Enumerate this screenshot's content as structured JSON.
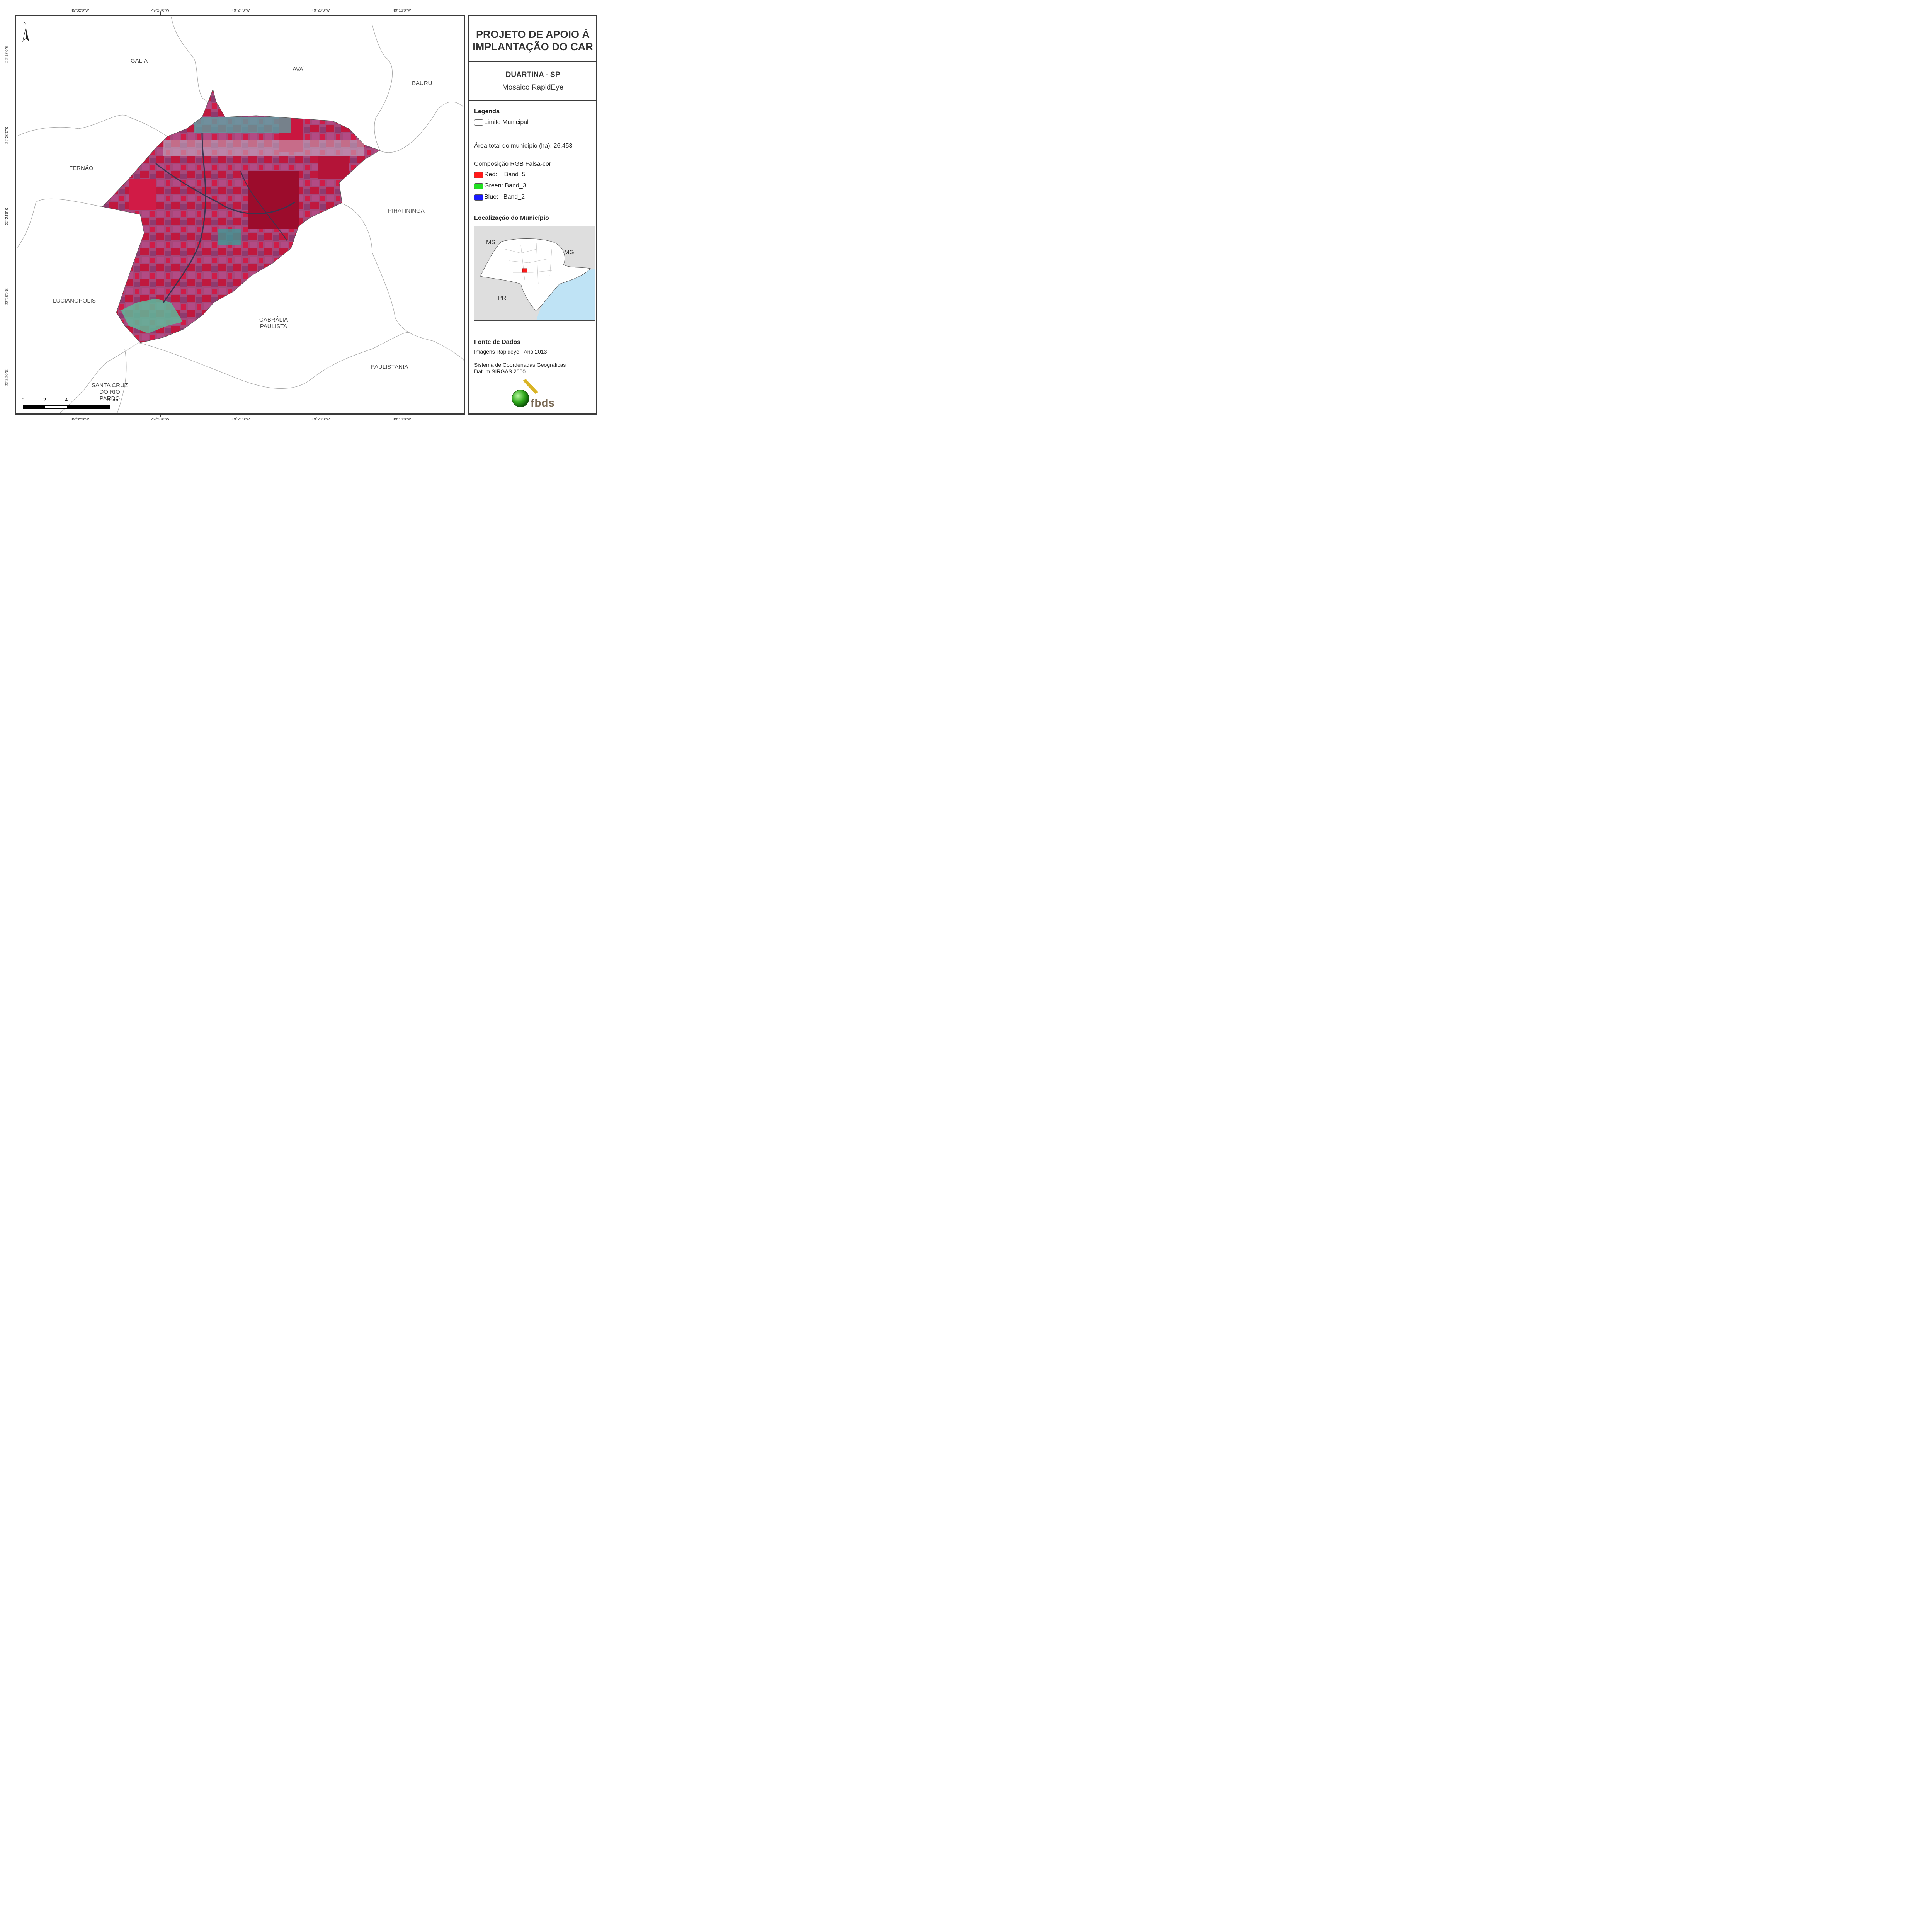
{
  "map": {
    "coords_top": [
      "49°32'0\"W",
      "49°28'0\"W",
      "49°24'0\"W",
      "49°20'0\"W",
      "49°16'0\"W"
    ],
    "coords_bottom": [
      "49°32'0\"W",
      "49°28'0\"W",
      "49°24'0\"W",
      "49°20'0\"W",
      "49°16'0\"W"
    ],
    "coords_left": [
      "22°16'0\"S",
      "22°20'0\"S",
      "22°24'0\"S",
      "22°28'0\"S",
      "22°32'0\"S"
    ],
    "north_label": "N",
    "municipalities": {
      "galia": "GÁLIA",
      "avai": "AVAÍ",
      "bauru": "BAURU",
      "fernao": "FERNÃO",
      "piratininga": "PIRATININGA",
      "lucianopolis": "LUCIANÓPOLIS",
      "cabralia": "CABRÁLIA PAULISTA",
      "paulistania": "PAULISTÂNIA",
      "santa_cruz": "SANTA CRUZ DO RIO PARDO"
    },
    "scale": {
      "l0": "0",
      "l2": "2",
      "l4": "4",
      "l8": "8 km"
    }
  },
  "panel": {
    "title": "PROJETO DE APOIO À IMPLANTAÇÃO DO CAR",
    "municipality": "DUARTINA - SP",
    "mosaic": "Mosaico RapidEye",
    "legend_heading": "Legenda",
    "limit_label": "Limite Municipal",
    "area_text": "Área total do município (ha): 26.453",
    "rgb_heading": "Composição RGB Falsa-cor",
    "bands": [
      {
        "label": "Red:    Band_5",
        "color": "#ff1a1a"
      },
      {
        "label": "Green: Band_3",
        "color": "#22e022"
      },
      {
        "label": "Blue:   Band_2",
        "color": "#1a1aff"
      }
    ],
    "location_heading": "Localização do Município",
    "inset": {
      "ms": "MS",
      "mg": "MG",
      "pr": "PR"
    },
    "source_heading": "Fonte de Dados",
    "source_line1": "Imagens Rapideye - Ano 2013",
    "source_line2": "Sistema de Coordenadas Geográficas",
    "source_line3": "Datum SIRGAS 2000",
    "logo_text": "fbds"
  },
  "colors": {
    "mosaic_red": "#b8123a",
    "mosaic_magenta": "#a6487a",
    "mosaic_cyan": "#3f9a96",
    "frame": "#3a3a3a",
    "ocean": "#bfe3f5"
  }
}
